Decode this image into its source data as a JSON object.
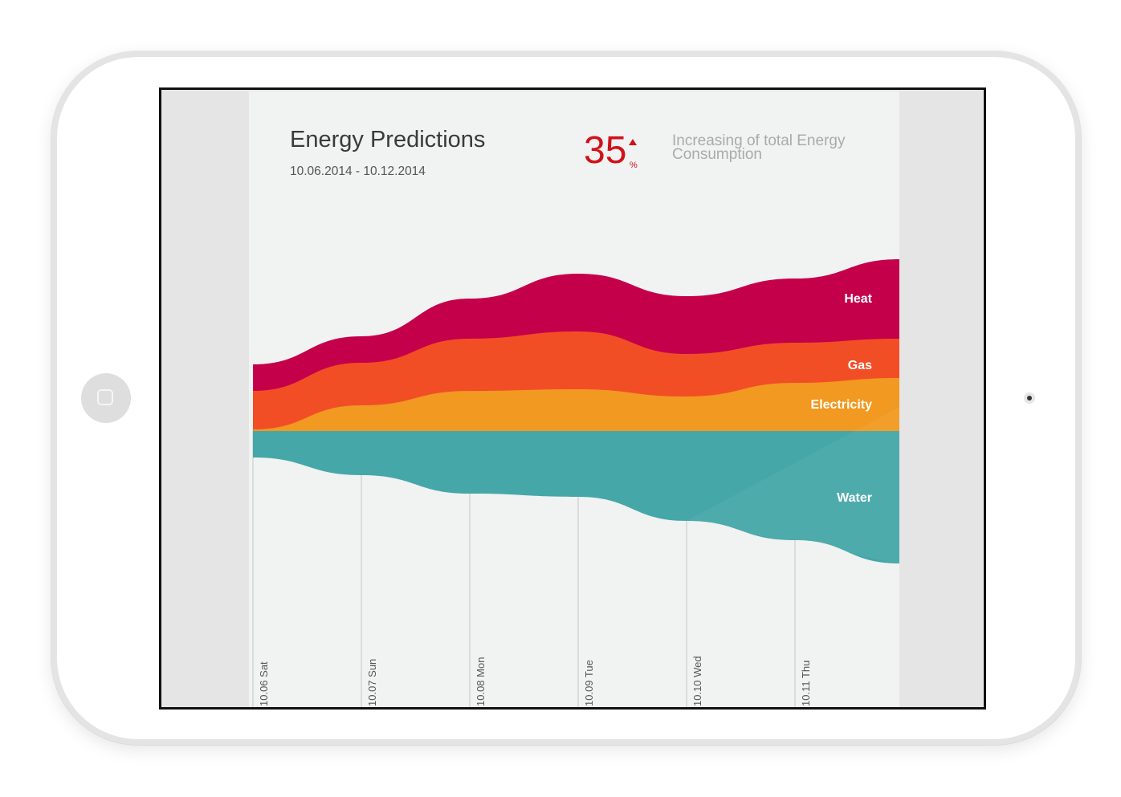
{
  "header": {
    "title": "Energy Predictions",
    "date_range": "10.06.2014 - 10.12.2014"
  },
  "kpi": {
    "value": "35",
    "unit": "%",
    "direction": "up",
    "description": "Increasing of total Energy Consumption"
  },
  "colors": {
    "heat": "#c5004b",
    "gas": "#f24e26",
    "electricity": "#f19920",
    "water": "#45a7a8",
    "kpi": "#d0121b"
  },
  "chart_data": {
    "type": "area",
    "stacked": true,
    "baseline": "diverging",
    "x": [
      "10.06 Sat",
      "10.07 Sun",
      "10.08 Mon",
      "10.09 Tue",
      "10.10 Wed",
      "10.11 Thu",
      ""
    ],
    "series": [
      {
        "name": "Water",
        "direction": "down",
        "values": [
          3.3,
          5.5,
          7.8,
          8.2,
          11.2,
          13.6,
          16.5
        ],
        "color": "#45a7a8"
      },
      {
        "name": "Electricity",
        "direction": "up",
        "values": [
          0.2,
          3.2,
          5.0,
          5.2,
          4.3,
          6.0,
          6.6
        ],
        "color": "#f19920"
      },
      {
        "name": "Gas",
        "direction": "up",
        "values": [
          5.0,
          8.5,
          11.5,
          12.4,
          9.6,
          11.0,
          11.5
        ],
        "color": "#f24e26"
      },
      {
        "name": "Heat",
        "direction": "up",
        "values": [
          8.3,
          11.8,
          16.5,
          19.6,
          16.8,
          19.0,
          21.4
        ],
        "color": "#c5004b"
      }
    ],
    "legend": "inline-right",
    "grid": "vertical"
  }
}
